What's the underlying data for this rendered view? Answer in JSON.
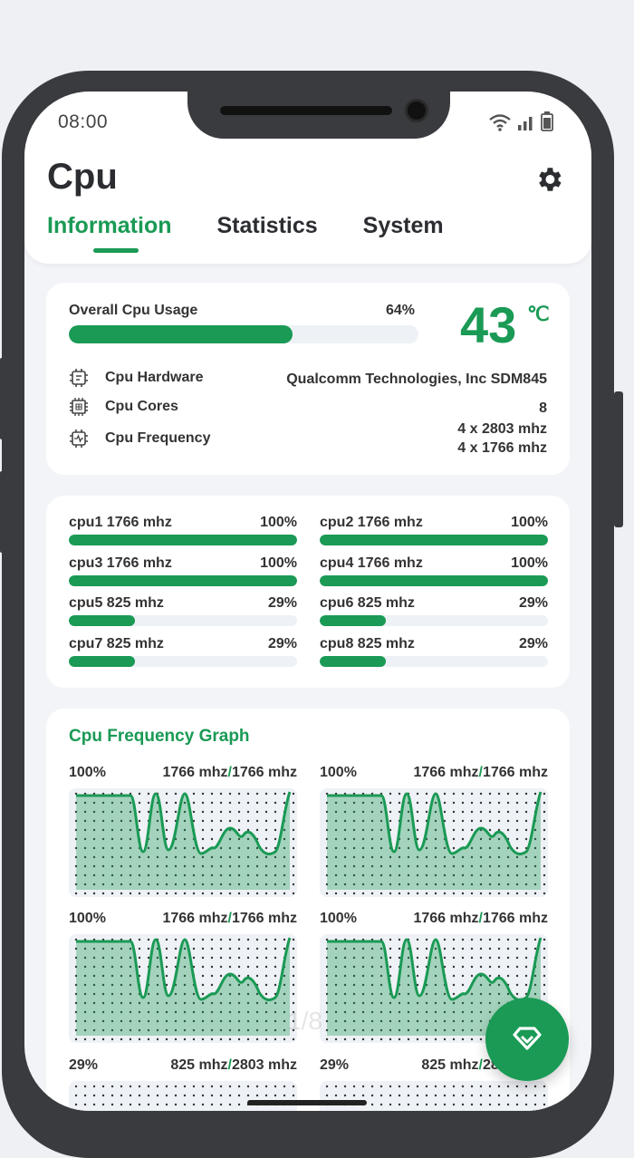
{
  "status_bar": {
    "time": "08:00"
  },
  "app": {
    "title": "Cpu"
  },
  "tabs": [
    {
      "label": "Information",
      "active": true
    },
    {
      "label": "Statistics",
      "active": false
    },
    {
      "label": "System",
      "active": false
    }
  ],
  "overview": {
    "usage_label": "Overall Cpu Usage",
    "usage_pct_text": "64%",
    "usage_fraction": 0.64,
    "temperature": "43",
    "temperature_unit": "℃",
    "hardware_label": "Cpu Hardware",
    "hardware_value": "Qualcomm Technologies, Inc SDM845",
    "cores_label": "Cpu Cores",
    "cores_value": "8",
    "frequency_label": "Cpu Frequency",
    "frequency_value_1": "4 x 2803 mhz",
    "frequency_value_2": "4 x 1766 mhz"
  },
  "cores": [
    {
      "name": "cpu1  1766 mhz",
      "pct": "100%",
      "fraction": 1.0
    },
    {
      "name": "cpu2  1766 mhz",
      "pct": "100%",
      "fraction": 1.0
    },
    {
      "name": "cpu3  1766 mhz",
      "pct": "100%",
      "fraction": 1.0
    },
    {
      "name": "cpu4  1766 mhz",
      "pct": "100%",
      "fraction": 1.0
    },
    {
      "name": "cpu5  825 mhz",
      "pct": "29%",
      "fraction": 0.29
    },
    {
      "name": "cpu6  825 mhz",
      "pct": "29%",
      "fraction": 0.29
    },
    {
      "name": "cpu7  825 mhz",
      "pct": "29%",
      "fraction": 0.29
    },
    {
      "name": "cpu8  825 mhz",
      "pct": "29%",
      "fraction": 0.29
    }
  ],
  "graph": {
    "title": "Cpu Frequency Graph",
    "separator": "/",
    "cells": [
      {
        "pct": "100%",
        "cur": "1766 mhz",
        "max": "1766 mhz"
      },
      {
        "pct": "100%",
        "cur": "1766 mhz",
        "max": "1766 mhz"
      },
      {
        "pct": "100%",
        "cur": "1766 mhz",
        "max": "1766 mhz"
      },
      {
        "pct": "100%",
        "cur": "1766 mhz",
        "max": "1766 mhz"
      },
      {
        "pct": "29%",
        "cur": "825 mhz",
        "max": "2803 mhz"
      },
      {
        "pct": "29%",
        "cur": "825 mhz",
        "max": "2803 mhz"
      }
    ]
  },
  "page_indicator": "1/8",
  "colors": {
    "accent": "#1a9a55",
    "phone_frame": "#3a3b3e",
    "background": "#f2f4f7"
  },
  "icons": [
    "wifi-icon",
    "signal-icon",
    "battery-icon",
    "gear-icon",
    "chip-icon",
    "cores-icon",
    "frequency-icon",
    "diamond-icon"
  ]
}
